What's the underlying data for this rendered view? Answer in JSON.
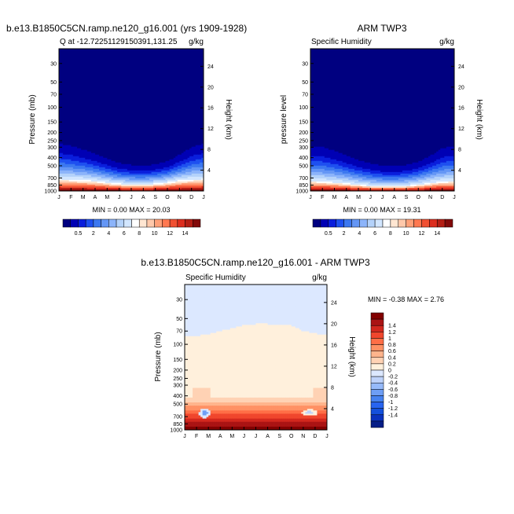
{
  "palettes": {
    "moisture": [
      "#000080",
      "#0000b4",
      "#0a1edc",
      "#1e50f0",
      "#3c78f0",
      "#6496f5",
      "#8cb4fa",
      "#b4d2fa",
      "#d2e6ff",
      "#ffffff",
      "#ffe6d2",
      "#ffc8aa",
      "#ffa078",
      "#ff7850",
      "#f05032",
      "#dc2d1e",
      "#b41e14",
      "#820a0a"
    ],
    "difference": [
      "#061e87",
      "#0a32be",
      "#1450dc",
      "#2864f0",
      "#4682f0",
      "#6e9ef5",
      "#96bafa",
      "#bed2fa",
      "#dce8ff",
      "#fff0dc",
      "#ffd2b4",
      "#ffb48c",
      "#ff9164",
      "#ff6e46",
      "#f0462d",
      "#d2281e",
      "#aa1414",
      "#820000"
    ]
  },
  "chart_data": [
    {
      "type": "heatmap",
      "title": "b.e13.B1850C5CN.ramp.ne120_g16.001 (yrs 1909-1928)",
      "left_string": "Q at -12.72251129150391,131.25",
      "right_string": "g/kg",
      "xlabel": "",
      "ylabel": "Pressure (mb)",
      "ylabel_right": "Height (km)",
      "x_ticks": [
        "J",
        "F",
        "M",
        "A",
        "M",
        "J",
        "J",
        "A",
        "S",
        "O",
        "N",
        "D",
        "J"
      ],
      "y_ticks": [
        "30",
        "50",
        "70",
        "100",
        "150",
        "200",
        "250",
        "300",
        "400",
        "500",
        "700",
        "850",
        "1000"
      ],
      "y_right_ticks": [
        "4",
        "8",
        "12",
        "16",
        "20",
        "24"
      ],
      "y_scale": "log",
      "ylim": [
        1000,
        20
      ],
      "stats": "MIN =  0.00 MAX = 20.03",
      "colorbar_orientation": "horizontal",
      "colorbar_labels": [
        "0.5",
        "2",
        "4",
        "6",
        "8",
        "10",
        "12",
        "14"
      ],
      "min": 0.0,
      "max": 20.03,
      "moisture_top_pressure_mb_by_month": [
        270,
        290,
        320,
        360,
        410,
        460,
        490,
        500,
        480,
        440,
        370,
        300,
        270
      ],
      "surface_red_depth_pressure_mb_by_month": [
        720,
        730,
        740,
        760,
        790,
        820,
        830,
        830,
        820,
        790,
        750,
        730,
        720
      ]
    },
    {
      "type": "heatmap",
      "title": "ARM TWP3",
      "left_string": "Specific Humidity",
      "right_string": "g/kg",
      "xlabel": "",
      "ylabel": "pressure level",
      "ylabel_right": "Height (km)",
      "x_ticks": [
        "J",
        "F",
        "M",
        "A",
        "M",
        "J",
        "J",
        "A",
        "S",
        "O",
        "N",
        "D",
        "J"
      ],
      "y_ticks": [
        "30",
        "50",
        "70",
        "100",
        "150",
        "200",
        "250",
        "300",
        "400",
        "500",
        "700",
        "850",
        "1000"
      ],
      "y_right_ticks": [
        "4",
        "8",
        "12",
        "16",
        "20",
        "24"
      ],
      "y_scale": "log",
      "ylim": [
        1000,
        20
      ],
      "stats": "MIN =  0.00 MAX = 19.31",
      "colorbar_orientation": "horizontal",
      "colorbar_labels": [
        "0.5",
        "2",
        "4",
        "6",
        "8",
        "10",
        "12",
        "14"
      ],
      "min": 0.0,
      "max": 19.31,
      "moisture_top_pressure_mb_by_month": [
        290,
        300,
        330,
        380,
        430,
        470,
        500,
        510,
        490,
        450,
        380,
        310,
        290
      ],
      "surface_red_depth_pressure_mb_by_month": [
        760,
        770,
        790,
        810,
        840,
        870,
        880,
        880,
        870,
        840,
        800,
        770,
        760
      ]
    },
    {
      "type": "heatmap",
      "title": "b.e13.B1850C5CN.ramp.ne120_g16.001 - ARM TWP3",
      "left_string": "Specific Humidity",
      "right_string": "g/kg",
      "xlabel": "",
      "ylabel": "Pressure (mb)",
      "ylabel_right": "Height (km)",
      "x_ticks": [
        "J",
        "F",
        "M",
        "A",
        "M",
        "J",
        "J",
        "A",
        "S",
        "O",
        "N",
        "D",
        "J"
      ],
      "y_ticks": [
        "30",
        "50",
        "70",
        "100",
        "150",
        "200",
        "250",
        "300",
        "400",
        "500",
        "700",
        "850",
        "1000"
      ],
      "y_right_ticks": [
        "4",
        "8",
        "12",
        "16",
        "20",
        "24"
      ],
      "y_scale": "log",
      "ylim": [
        1000,
        20
      ],
      "stats": "MIN = -0.38 MAX =  2.76",
      "colorbar_orientation": "vertical",
      "colorbar_labels": [
        "1.4",
        "1.2",
        "1",
        "0.8",
        "0.6",
        "0.4",
        "0.2",
        "0",
        "-0.2",
        "-0.4",
        "-0.6",
        "-0.8",
        "-1",
        "-1.2",
        "-1.4"
      ],
      "min": -0.38,
      "max": 2.76,
      "upper_boundary_pressure_mb_by_month": [
        82,
        80,
        76,
        70,
        65,
        60,
        58,
        58,
        60,
        60,
        70,
        75,
        78
      ]
    }
  ]
}
